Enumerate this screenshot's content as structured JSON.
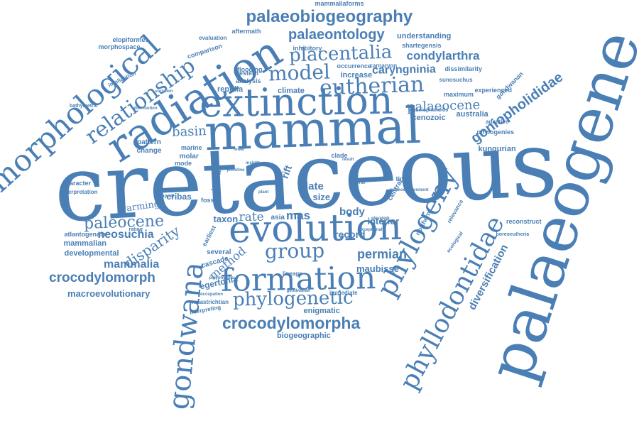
{
  "color": "#4a7fb5",
  "words": [
    "cretaceous",
    "palaeogene",
    "mammal",
    "extinction",
    "evolution",
    "radiation",
    "gondwana",
    "formation",
    "morphological",
    "phylogeny",
    "phyllodontidae",
    "relationship",
    "palaeobiogeography",
    "group",
    "phylogenetic",
    "crocodylomorpha",
    "eutherian",
    "placentalia",
    "palaeontology",
    "model",
    "goniopholididae",
    "paleocene",
    "crocodylomorph",
    "palaeocene",
    "condylarthra",
    "caryngninia",
    "diversification",
    "basin",
    "permian",
    "mammalia",
    "neosuchia",
    "disparity",
    "method",
    "rate",
    "mas",
    "body",
    "interior",
    "record",
    "late",
    "size",
    "maubisse",
    "macroevolutionary",
    "egertonia",
    "enigmatic",
    "biogeographic",
    "mammalian",
    "developmental",
    "atlantogenata",
    "cenozoic",
    "australia",
    "kungurian",
    "phylogenies",
    "adaptive",
    "experienced",
    "maximum",
    "sunosuchus",
    "dissimilarity",
    "increase",
    "occurrence",
    "carnarvon",
    "inhibitory",
    "understanding",
    "shartegensis",
    "mammaliaforms",
    "aftermath",
    "evaluation",
    "comparison",
    "reptilia",
    "climate",
    "analysis",
    "flooding",
    "western",
    "elopiformes",
    "morphospace",
    "implication",
    "bathymetric",
    "character",
    "interpretation",
    "warming",
    "pattern",
    "change",
    "molar",
    "marine",
    "mode",
    "india",
    "taxon",
    "asia",
    "fossil",
    "earliest",
    "cascade",
    "several",
    "lineage",
    "immediate",
    "gondwanan",
    "maastrichtian",
    "interpreting",
    "occupation",
    "polyphyletic",
    "cribas",
    "rift",
    "central",
    "northern",
    "timor",
    "clade",
    "reconstruct",
    "boreoeutheria",
    "ecological",
    "relevance",
    "gondwanan",
    "goniopholidids",
    "support",
    "rating",
    "elevated",
    "variation",
    "distribution",
    "palaeoenvironment",
    "exceptional",
    "diverse",
    "result",
    "insight",
    "lower",
    "primitive",
    "plant",
    "fauna"
  ]
}
